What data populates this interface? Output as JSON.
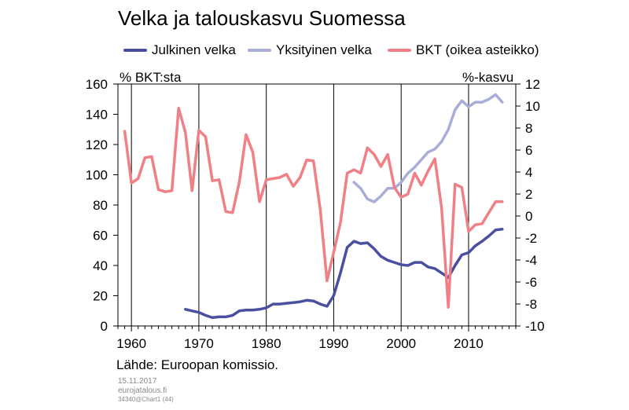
{
  "title": "Velka ja talouskasvu Suomessa",
  "source": "Lähde: Euroopan komissio.",
  "footer": {
    "date": "15.11.2017",
    "site": "eurojatalous.fi",
    "code": "34340@Chart1 (44)"
  },
  "colors": {
    "public_debt": "#4a4fa0",
    "private_debt": "#a8aed8",
    "gdp": "#f07f86"
  },
  "chart_data": {
    "type": "line",
    "left_axis_label": "% BKT:sta",
    "right_axis_label": "%-kasvu",
    "x_range": [
      1958,
      2017
    ],
    "x_ticks": [
      1960,
      1970,
      1980,
      1990,
      2000,
      2010
    ],
    "ylim_left": [
      0,
      160
    ],
    "ylim_right": [
      -10,
      12
    ],
    "y_ticks_left": [
      0,
      20,
      40,
      60,
      80,
      100,
      120,
      140,
      160
    ],
    "y_ticks_right": [
      -10,
      -8,
      -6,
      -4,
      -2,
      0,
      2,
      4,
      6,
      8,
      10,
      12
    ],
    "grid": "vertical lines at decade ticks",
    "series": [
      {
        "name": "Julkinen velka",
        "axis": "left",
        "x": [
          1968,
          1969,
          1970,
          1971,
          1972,
          1973,
          1974,
          1975,
          1976,
          1977,
          1978,
          1979,
          1980,
          1981,
          1982,
          1983,
          1984,
          1985,
          1986,
          1987,
          1988,
          1989,
          1990,
          1991,
          1992,
          1993,
          1994,
          1995,
          1996,
          1997,
          1998,
          1999,
          2000,
          2001,
          2002,
          2003,
          2004,
          2005,
          2006,
          2007,
          2008,
          2009,
          2010,
          2011,
          2012,
          2013,
          2014,
          2015
        ],
        "y": [
          11,
          10,
          9,
          7,
          5.5,
          6,
          6,
          7,
          10,
          10.5,
          10.5,
          11,
          12,
          14.5,
          14.5,
          15,
          15.5,
          16,
          17,
          16.5,
          14.5,
          13,
          20,
          35,
          52,
          56,
          54.5,
          55,
          51,
          46,
          43.5,
          42,
          40.5,
          40,
          42,
          42,
          39,
          38,
          35,
          32,
          40,
          47,
          48.5,
          53,
          56,
          59.5,
          63.5,
          64
        ]
      },
      {
        "name": "Yksityinen velka",
        "axis": "left",
        "x": [
          1993,
          1994,
          1995,
          1996,
          1997,
          1998,
          1999,
          2000,
          2001,
          2002,
          2003,
          2004,
          2005,
          2006,
          2007,
          2008,
          2009,
          2010,
          2011,
          2012,
          2013,
          2014,
          2015
        ],
        "y": [
          95,
          91,
          84,
          82,
          86,
          91,
          91,
          95,
          101,
          105,
          110,
          115,
          117,
          122,
          130,
          143,
          149,
          145,
          148,
          148,
          150,
          153,
          148
        ]
      },
      {
        "name": "BKT (oikea asteikko)",
        "axis": "right",
        "x": [
          1959,
          1960,
          1961,
          1962,
          1963,
          1964,
          1965,
          1966,
          1967,
          1968,
          1969,
          1970,
          1971,
          1972,
          1973,
          1974,
          1975,
          1976,
          1977,
          1978,
          1979,
          1980,
          1981,
          1982,
          1983,
          1984,
          1985,
          1986,
          1987,
          1988,
          1989,
          1990,
          1991,
          1992,
          1993,
          1994,
          1995,
          1996,
          1997,
          1998,
          1999,
          2000,
          2001,
          2002,
          2003,
          2004,
          2005,
          2006,
          2007,
          2008,
          2009,
          2010,
          2011,
          2012,
          2013,
          2014,
          2015
        ],
        "y": [
          7.7,
          3,
          3.4,
          5.3,
          5.4,
          2.4,
          2.2,
          2.3,
          9.8,
          7.6,
          2.3,
          7.8,
          7.2,
          3.2,
          3.3,
          0.4,
          0.3,
          3.1,
          7.4,
          5.8,
          1.3,
          3.3,
          3.4,
          3.5,
          3.8,
          2.7,
          3.5,
          5.1,
          5,
          0.6,
          -5.9,
          -3.3,
          -0.6,
          3.9,
          4.2,
          3.9,
          6.2,
          5.6,
          4.5,
          5.6,
          2.6,
          1.7,
          2,
          3.9,
          2.8,
          4.1,
          5.2,
          0.7,
          -8.3,
          2.9,
          2.6,
          -1.4,
          -0.8,
          -0.7,
          0.3,
          1.3,
          1.3
        ]
      }
    ]
  }
}
